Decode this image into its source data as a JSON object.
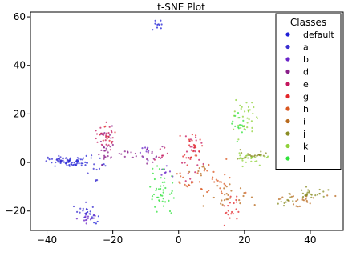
{
  "chart_data": {
    "type": "scatter",
    "title": "t-SNE Plot",
    "xlabel": "",
    "ylabel": "",
    "xlim": [
      -45,
      50
    ],
    "ylim": [
      -28,
      62
    ],
    "xticks": [
      -40,
      -20,
      0,
      20,
      40
    ],
    "yticks": [
      -20,
      0,
      20,
      40,
      60
    ],
    "grid": false,
    "legend": {
      "title": "Classes",
      "placement": "top-right",
      "entries": [
        {
          "name": "default",
          "color": "#1f1fd6"
        },
        {
          "name": "a",
          "color": "#3b2fd0"
        },
        {
          "name": "b",
          "color": "#6a24c8"
        },
        {
          "name": "d",
          "color": "#8a1f8a"
        },
        {
          "name": "e",
          "color": "#c4175e"
        },
        {
          "name": "g",
          "color": "#e3262a"
        },
        {
          "name": "h",
          "color": "#d9561f"
        },
        {
          "name": "i",
          "color": "#b86a1d"
        },
        {
          "name": "j",
          "color": "#8a8c24"
        },
        {
          "name": "k",
          "color": "#8fd13a"
        },
        {
          "name": "l",
          "color": "#2fe33b"
        }
      ]
    },
    "series": [
      {
        "name": "default",
        "color": "#1f1fd6",
        "clusters": [
          {
            "cx": -6,
            "cy": 56.5,
            "sx": 1.5,
            "sy": 1.2,
            "n": 10
          },
          {
            "cx": -32,
            "cy": 0,
            "sx": 4,
            "sy": 0.9,
            "n": 55
          },
          {
            "cx": -27,
            "cy": -22,
            "sx": 1.2,
            "sy": 1.5,
            "n": 12
          }
        ]
      },
      {
        "name": "a",
        "color": "#3b2fd0",
        "clusters": [
          {
            "cx": -36,
            "cy": 1,
            "sx": 2,
            "sy": 0.8,
            "n": 25
          },
          {
            "cx": -28,
            "cy": -20,
            "sx": 1.5,
            "sy": 2,
            "n": 15
          },
          {
            "cx": -25,
            "cy": -3,
            "sx": 1.5,
            "sy": 3,
            "n": 10
          }
        ]
      },
      {
        "name": "b",
        "color": "#6a24c8",
        "clusters": [
          {
            "cx": -27,
            "cy": -23,
            "sx": 1.2,
            "sy": 1.2,
            "n": 15
          },
          {
            "cx": -9,
            "cy": 5,
            "sx": 1.5,
            "sy": 2,
            "n": 10
          },
          {
            "cx": -4,
            "cy": -4,
            "sx": 1.5,
            "sy": 1.5,
            "n": 8
          }
        ]
      },
      {
        "name": "d",
        "color": "#8a1f8a",
        "clusters": [
          {
            "cx": -22,
            "cy": 7,
            "sx": 1.3,
            "sy": 4,
            "n": 30
          },
          {
            "cx": -14,
            "cy": 4,
            "sx": 2.5,
            "sy": 1,
            "n": 10
          },
          {
            "cx": -8,
            "cy": 3,
            "sx": 1.5,
            "sy": 3,
            "n": 12
          }
        ]
      },
      {
        "name": "e",
        "color": "#c4175e",
        "clusters": [
          {
            "cx": -23,
            "cy": 11,
            "sx": 1.5,
            "sy": 3,
            "n": 25
          },
          {
            "cx": 4,
            "cy": 2,
            "sx": 1.5,
            "sy": 6,
            "n": 25
          },
          {
            "cx": -5,
            "cy": 3,
            "sx": 1.5,
            "sy": 2,
            "n": 8
          }
        ]
      },
      {
        "name": "g",
        "color": "#e3262a",
        "clusters": [
          {
            "cx": 4,
            "cy": 6,
            "sx": 1.3,
            "sy": 3,
            "n": 25
          },
          {
            "cx": 16,
            "cy": -20,
            "sx": 1.5,
            "sy": 3,
            "n": 20
          },
          {
            "cx": -22,
            "cy": 12,
            "sx": 1.2,
            "sy": 2,
            "n": 10
          }
        ]
      },
      {
        "name": "h",
        "color": "#d9561f",
        "clusters": [
          {
            "cx": 10,
            "cy": -8,
            "sx": 4,
            "sy": 4,
            "n": 30
          },
          {
            "cx": 2,
            "cy": -8,
            "sx": 2,
            "sy": 2,
            "n": 12
          }
        ]
      },
      {
        "name": "i",
        "color": "#b86a1d",
        "clusters": [
          {
            "cx": 15,
            "cy": -14,
            "sx": 3,
            "sy": 3,
            "n": 25
          },
          {
            "cx": 36,
            "cy": -15,
            "sx": 4,
            "sy": 1.2,
            "n": 25
          },
          {
            "cx": 6,
            "cy": -3,
            "sx": 2,
            "sy": 2,
            "n": 10
          }
        ]
      },
      {
        "name": "j",
        "color": "#8a8c24",
        "clusters": [
          {
            "cx": 40,
            "cy": -13,
            "sx": 3,
            "sy": 1,
            "n": 25
          },
          {
            "cx": 22,
            "cy": 3,
            "sx": 3.5,
            "sy": 1,
            "n": 25
          },
          {
            "cx": 33,
            "cy": -16,
            "sx": 2,
            "sy": 0.8,
            "n": 10
          }
        ]
      },
      {
        "name": "k",
        "color": "#8fd13a",
        "clusters": [
          {
            "cx": 20,
            "cy": 18,
            "sx": 1.5,
            "sy": 3.5,
            "n": 35
          },
          {
            "cx": 23,
            "cy": 2,
            "sx": 3,
            "sy": 1.2,
            "n": 25
          }
        ]
      },
      {
        "name": "l",
        "color": "#2fe33b",
        "clusters": [
          {
            "cx": -5,
            "cy": -12,
            "sx": 2,
            "sy": 5,
            "n": 45
          },
          {
            "cx": 19,
            "cy": 15,
            "sx": 1.2,
            "sy": 2.5,
            "n": 15
          }
        ]
      }
    ]
  }
}
